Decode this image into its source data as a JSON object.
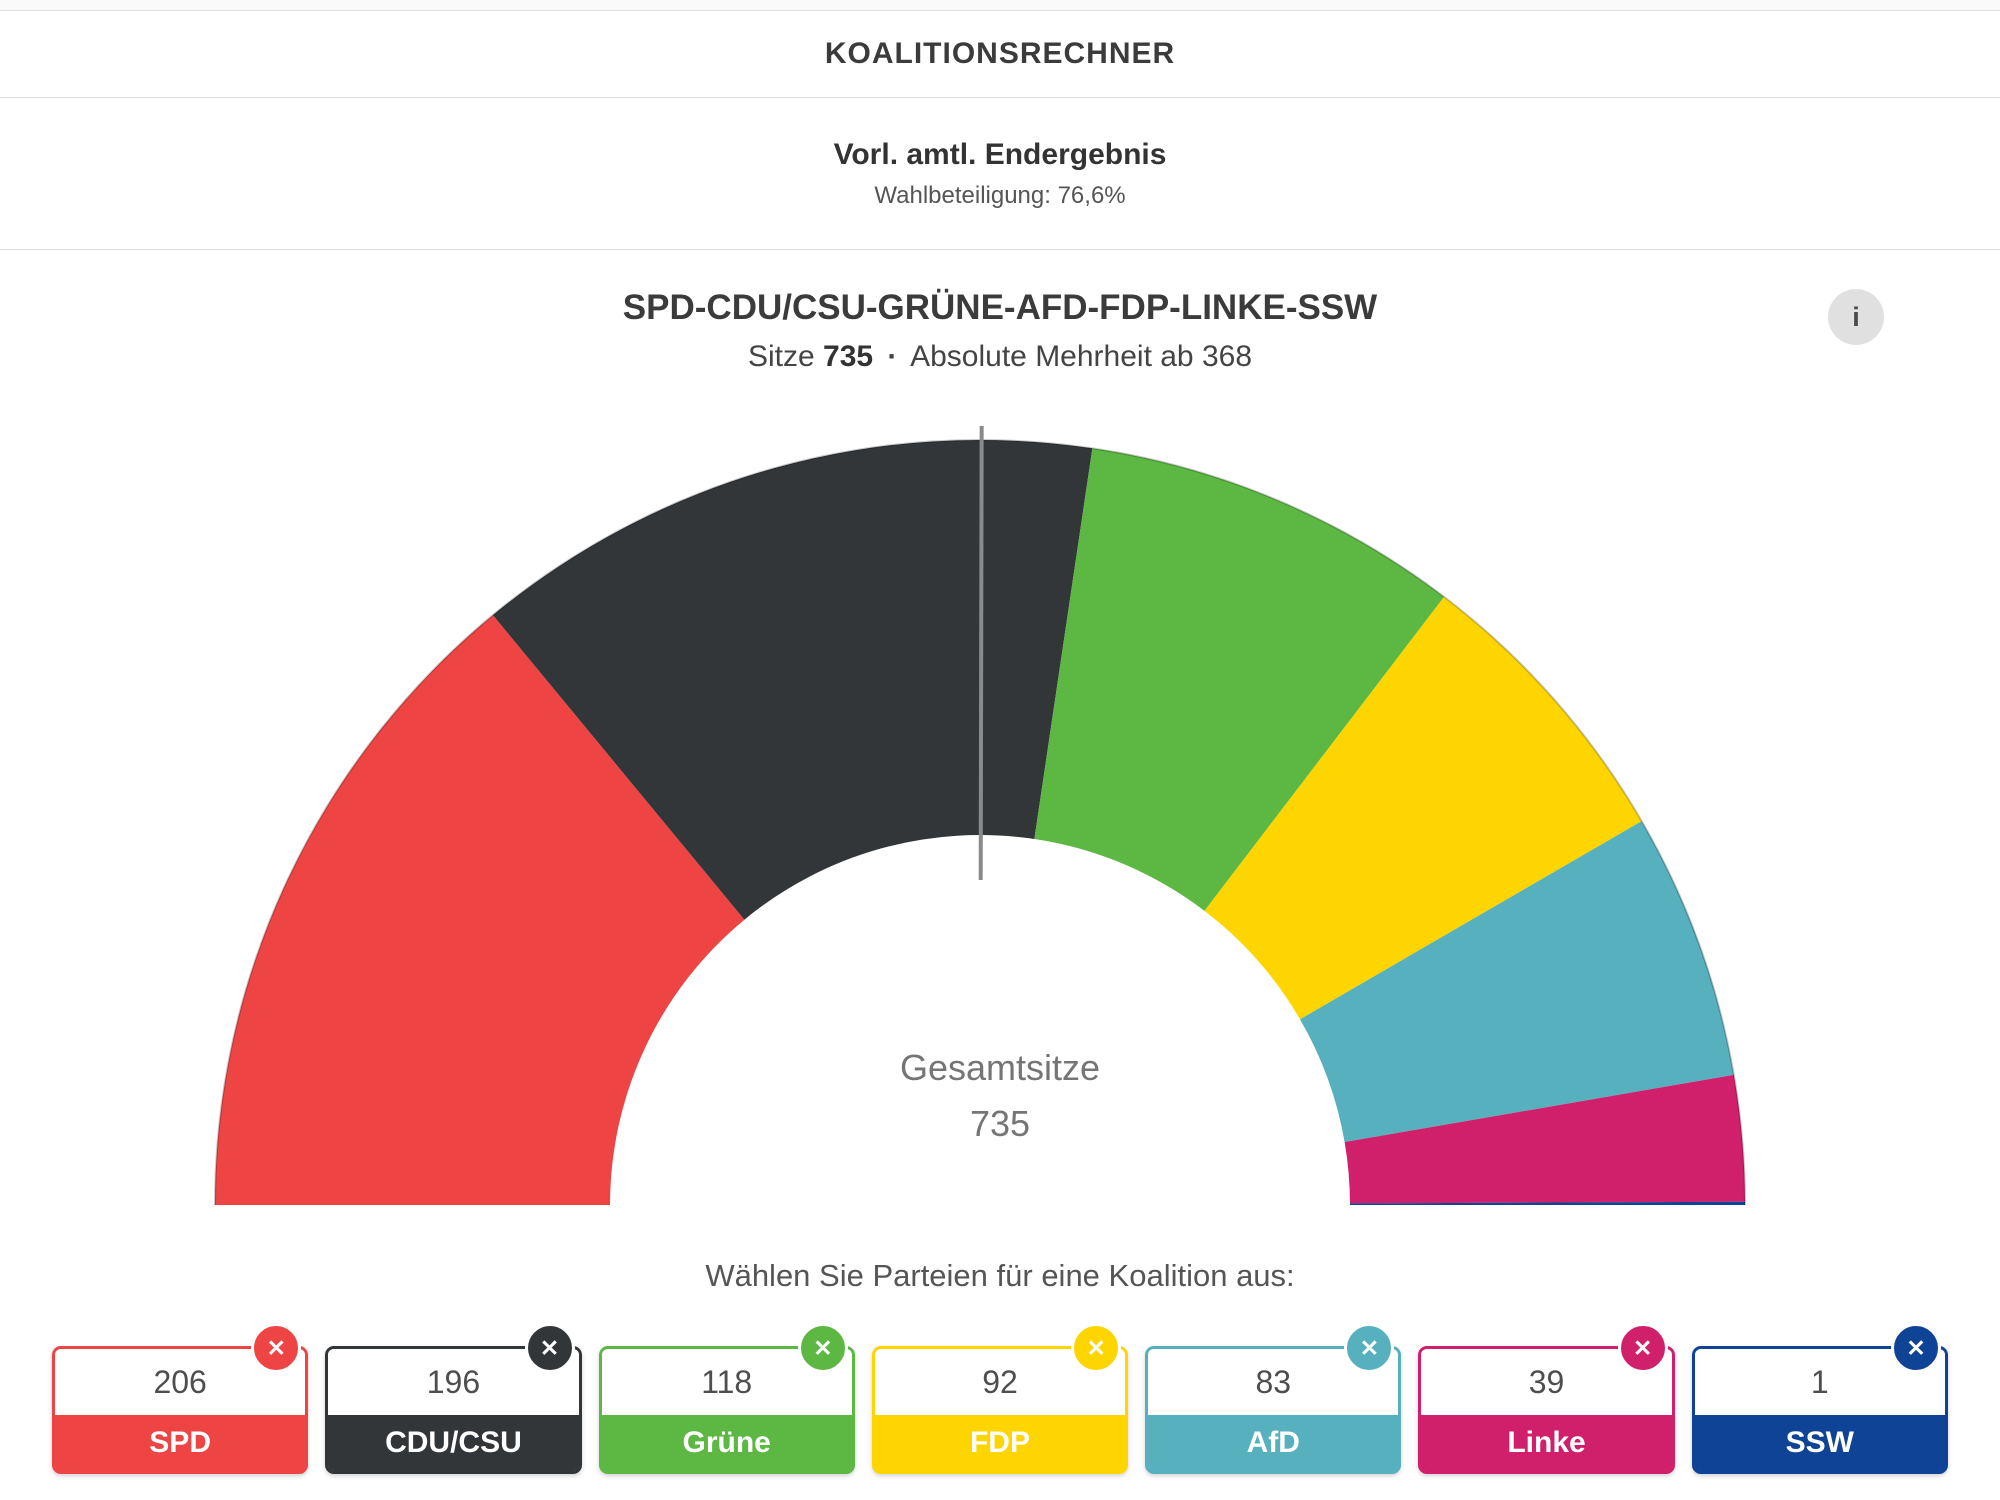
{
  "header": {
    "title": "KOALITIONSRECHNER"
  },
  "status": {
    "title": "Vorl. amtl. Endergebnis",
    "subtitle": "Wahlbeteiligung: 76,6%"
  },
  "coalition": {
    "title": "SPD-CDU/CSU-GRÜNE-AFD-FDP-LINKE-SSW",
    "seats_label": "Sitze",
    "seats_value": "735",
    "separator": "·",
    "majority_label": "Absolute Mehrheit ab 368",
    "info_icon": "i",
    "info_button_bg": "#E0E0E0"
  },
  "chart_data": {
    "type": "half_donut",
    "title": "SPD-CDU/CSU-GRÜNE-AFD-FDP-LINKE-SSW",
    "total_seats": 735,
    "majority_threshold": 368,
    "center_label": "Gesamtsitze",
    "center_value": "735",
    "majority_marker_color": "#8A8A8A",
    "series": [
      {
        "name": "SPD",
        "seats": 206,
        "color": "#EE4444"
      },
      {
        "name": "CDU/CSU",
        "seats": 196,
        "color": "#333639"
      },
      {
        "name": "Grüne",
        "seats": 118,
        "color": "#5CB743"
      },
      {
        "name": "FDP",
        "seats": 92,
        "color": "#FFD500"
      },
      {
        "name": "AfD",
        "seats": 83,
        "color": "#57B0BD"
      },
      {
        "name": "Linke",
        "seats": 39,
        "color": "#D01F6B"
      },
      {
        "name": "SSW",
        "seats": 1,
        "color": "#0E4396"
      }
    ]
  },
  "selection": {
    "prompt": "Wählen Sie Parteien für eine Koalition aus:",
    "close_icon": "✕",
    "parties": [
      {
        "name": "SPD",
        "seats": "206",
        "color": "#EE4444"
      },
      {
        "name": "CDU/CSU",
        "seats": "196",
        "color": "#333639"
      },
      {
        "name": "Grüne",
        "seats": "118",
        "color": "#5CB743"
      },
      {
        "name": "FDP",
        "seats": "92",
        "color": "#FFD500"
      },
      {
        "name": "AfD",
        "seats": "83",
        "color": "#57B0BD"
      },
      {
        "name": "Linke",
        "seats": "39",
        "color": "#D01F6B"
      },
      {
        "name": "SSW",
        "seats": "1",
        "color": "#0E4396"
      }
    ]
  }
}
